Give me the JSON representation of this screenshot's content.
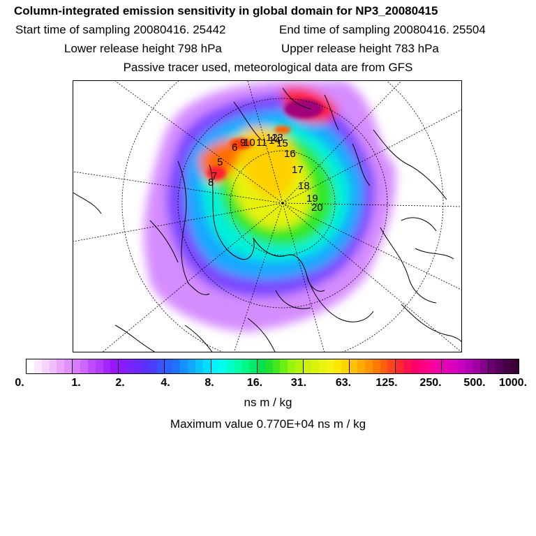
{
  "header": {
    "title": "Column-integrated emission sensitivity in global domain for NP3_20080415",
    "start_label": "Start time of sampling 20080416. 25442",
    "end_label": "End time of sampling 20080416. 25504",
    "lower_label": "Lower release height  798 hPa",
    "upper_label": "Upper release height  783 hPa",
    "tracer_note": "Passive tracer used, meteorological data are from GFS"
  },
  "map": {
    "projection": "polar stereographic",
    "trajectory_labels": [
      "5",
      "6",
      "7",
      "8",
      "9",
      "10",
      "11",
      "12",
      "13",
      "14",
      "15",
      "16",
      "17",
      "18",
      "19",
      "20"
    ]
  },
  "colorbar": {
    "tick_labels": [
      "0.",
      "1.",
      "2.",
      "4.",
      "8.",
      "16.",
      "31.",
      "63.",
      "125.",
      "250.",
      "500.",
      "1000."
    ],
    "colors": [
      "#ffffff",
      "#fbe8ff",
      "#f6d3ff",
      "#f0bdff",
      "#eaa6ff",
      "#e290ff",
      "#d87cff",
      "#cc66ff",
      "#bf4dff",
      "#b33cff",
      "#a426ff",
      "#9b16ff",
      "#8c1aff",
      "#7a22ff",
      "#6a2aff",
      "#5a30ff",
      "#4a3dff",
      "#3a55ff",
      "#2a62ff",
      "#1f74ff",
      "#1690ff",
      "#10a8ff",
      "#08c4ff",
      "#00dcff",
      "#00f4ff",
      "#00ffee",
      "#00ffcf",
      "#00ffa8",
      "#00f78a",
      "#00ea6c",
      "#00e04e",
      "#20e030",
      "#44e81e",
      "#6cf014",
      "#98f40c",
      "#b4f20a",
      "#cdf00a",
      "#d8f20c",
      "#e8f40e",
      "#f4f410",
      "#ffe800",
      "#ffd400",
      "#ffc000",
      "#ffaa00",
      "#ff9400",
      "#ff7a00",
      "#ff6010",
      "#ff4420",
      "#ff2a30",
      "#ff1050",
      "#ff0068",
      "#ff0080",
      "#ff0096",
      "#f200a8",
      "#e600b4",
      "#d800be",
      "#c800c0",
      "#b400b4",
      "#9c00a0",
      "#84008c",
      "#6a0070",
      "#520058",
      "#440044",
      "#3a0036"
    ]
  },
  "units_label": "ns m / kg",
  "maximum_label": "Maximum value  0.770E+04 ns m / kg"
}
